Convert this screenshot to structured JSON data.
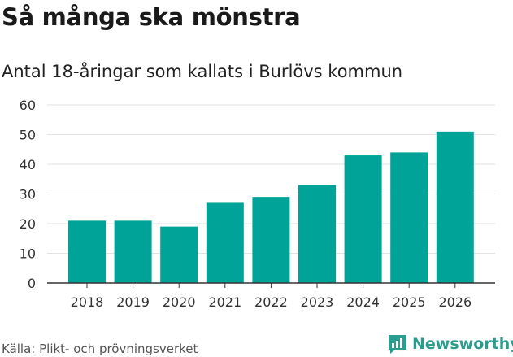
{
  "title": "Så många ska mönstra",
  "subtitle": "Antal 18-åringar som kallats i Burlövs kommun",
  "source": "Källa: Plikt- och prövningsverket",
  "brand": {
    "name": "Newsworthy",
    "icon": "newsworthy-logo-icon",
    "color": "#2a9d8f"
  },
  "colors": {
    "bar": "#00a398",
    "grid": "#e2e2e2",
    "axis": "#333333"
  },
  "chart_data": {
    "type": "bar",
    "title": "Så många ska mönstra",
    "subtitle": "Antal 18-åringar som kallats i Burlövs kommun",
    "xlabel": "",
    "ylabel": "",
    "categories": [
      "2018",
      "2019",
      "2020",
      "2021",
      "2022",
      "2023",
      "2024",
      "2025",
      "2026"
    ],
    "values": [
      21,
      21,
      19,
      27,
      29,
      33,
      43,
      44,
      51
    ],
    "ylim": [
      0,
      60
    ],
    "yticks": [
      0,
      10,
      20,
      30,
      40,
      50,
      60
    ],
    "grid": true,
    "legend": "none"
  }
}
